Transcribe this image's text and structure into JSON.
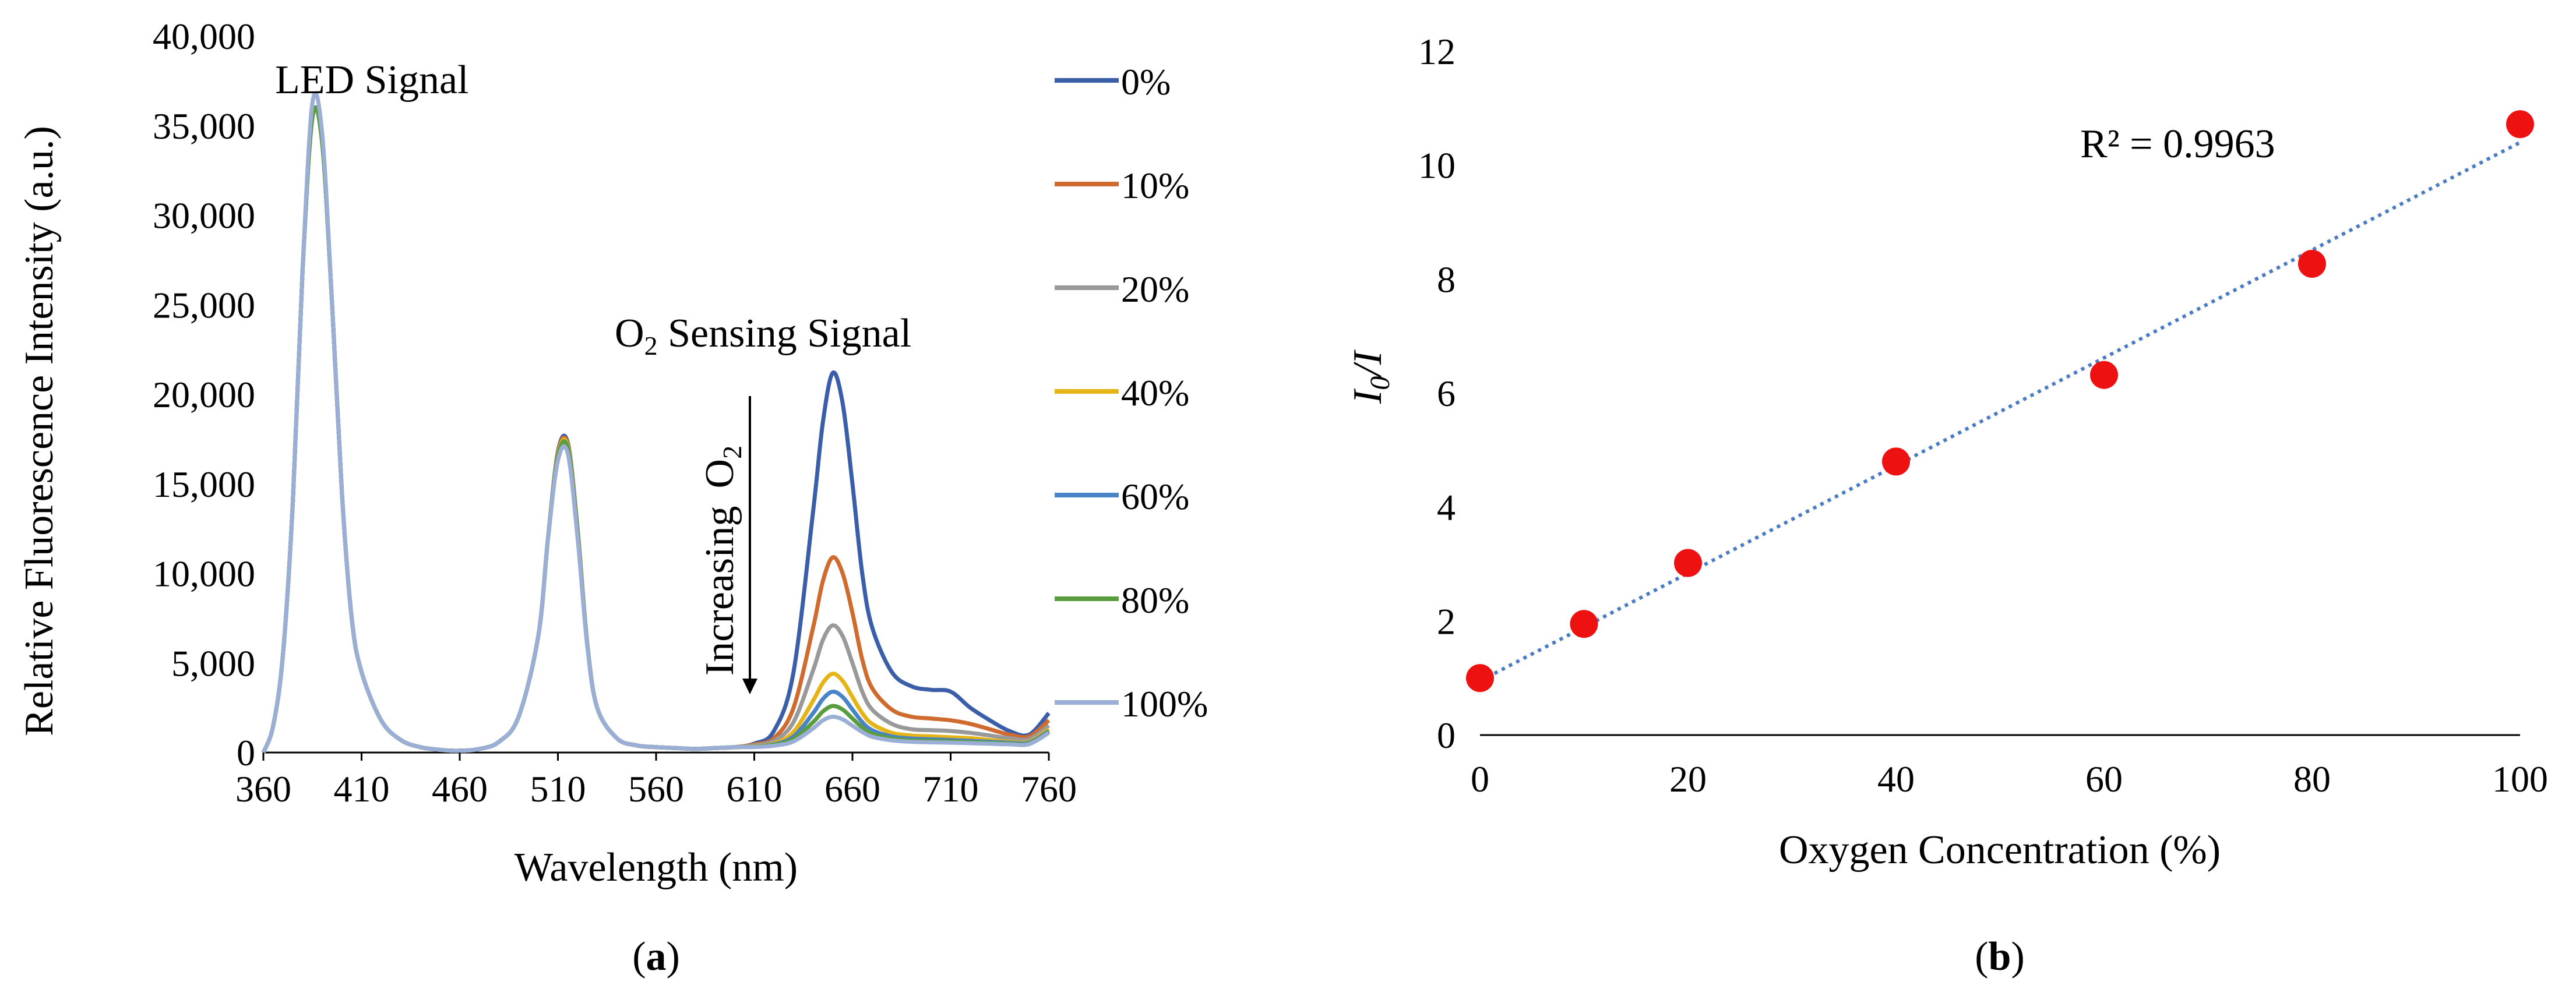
{
  "chart_data": [
    {
      "panel_label": "(a)",
      "type": "line",
      "title": "",
      "xlabel": "Wavelength (nm)",
      "ylabel": "Relative Fluorescence Intensity (a.u.)",
      "xlim": [
        360,
        760
      ],
      "ylim": [
        0,
        40000
      ],
      "xticks": [
        360,
        410,
        460,
        510,
        560,
        610,
        660,
        710,
        760
      ],
      "yticks": [
        "0",
        "5,000",
        "10,000",
        "15,000",
        "20,000",
        "25,000",
        "30,000",
        "35,000",
        "40,000"
      ],
      "x": [
        360,
        365,
        370,
        375,
        380,
        385,
        390,
        395,
        400,
        405,
        410,
        420,
        430,
        440,
        450,
        460,
        470,
        480,
        490,
        500,
        505,
        510,
        515,
        520,
        525,
        530,
        540,
        550,
        560,
        570,
        580,
        590,
        600,
        610,
        620,
        630,
        640,
        645,
        650,
        655,
        660,
        665,
        670,
        680,
        690,
        700,
        710,
        720,
        730,
        740,
        750,
        760
      ],
      "series": [
        {
          "name": "0%",
          "color": "#3a5ea8",
          "values": [
            0,
            1500,
            5500,
            14000,
            27000,
            35500,
            34000,
            25000,
            14500,
            7500,
            4500,
            1800,
            700,
            300,
            150,
            100,
            200,
            600,
            2000,
            6500,
            12000,
            16800,
            17300,
            12500,
            6000,
            2500,
            800,
            400,
            300,
            250,
            200,
            250,
            300,
            500,
            1200,
            4500,
            13500,
            18500,
            21200,
            19500,
            15000,
            10000,
            7000,
            4500,
            3700,
            3500,
            3400,
            2500,
            1800,
            1200,
            1000,
            2200
          ]
        },
        {
          "name": "10%",
          "color": "#d06b2f",
          "values": [
            0,
            1500,
            5500,
            14000,
            27000,
            35500,
            34000,
            25000,
            14500,
            7500,
            4500,
            1800,
            700,
            300,
            150,
            100,
            200,
            600,
            2000,
            6500,
            12000,
            16700,
            17200,
            12400,
            6000,
            2500,
            800,
            400,
            300,
            250,
            200,
            250,
            300,
            450,
            800,
            2500,
            7000,
            9600,
            10900,
            10000,
            7800,
            5200,
            3600,
            2400,
            2000,
            1900,
            1800,
            1600,
            1300,
            1000,
            900,
            1800
          ]
        },
        {
          "name": "20%",
          "color": "#999999",
          "values": [
            0,
            1500,
            5500,
            14000,
            27000,
            35500,
            34000,
            25000,
            14500,
            7500,
            4500,
            1800,
            700,
            300,
            150,
            100,
            200,
            600,
            2000,
            6500,
            12000,
            16600,
            17100,
            12300,
            6000,
            2500,
            800,
            400,
            300,
            250,
            200,
            250,
            300,
            400,
            650,
            1700,
            4600,
            6300,
            7100,
            6500,
            5000,
            3400,
            2400,
            1600,
            1300,
            1250,
            1200,
            1100,
            950,
            800,
            750,
            1500
          ]
        },
        {
          "name": "40%",
          "color": "#e6b416",
          "values": [
            0,
            1500,
            5500,
            14000,
            27000,
            35500,
            34000,
            25000,
            14500,
            7500,
            4500,
            1800,
            700,
            300,
            150,
            100,
            200,
            600,
            2000,
            6500,
            12000,
            16600,
            17100,
            12300,
            6000,
            2500,
            800,
            400,
            300,
            250,
            200,
            250,
            300,
            350,
            500,
            1150,
            2900,
            3900,
            4400,
            4000,
            3100,
            2200,
            1600,
            1100,
            950,
            900,
            850,
            800,
            700,
            600,
            600,
            1300
          ]
        },
        {
          "name": "60%",
          "color": "#4a84c8",
          "values": [
            0,
            1500,
            5500,
            14000,
            27000,
            35500,
            34000,
            25000,
            14500,
            7500,
            4500,
            1800,
            700,
            300,
            150,
            100,
            200,
            600,
            2000,
            6500,
            12000,
            16500,
            17000,
            12200,
            6000,
            2500,
            800,
            400,
            300,
            250,
            200,
            250,
            300,
            330,
            450,
            900,
            2200,
            3000,
            3400,
            3100,
            2400,
            1700,
            1250,
            900,
            780,
            740,
            700,
            650,
            600,
            550,
            550,
            1200
          ]
        },
        {
          "name": "80%",
          "color": "#5a9d3e",
          "values": [
            0,
            1500,
            5500,
            14000,
            27000,
            35500,
            34000,
            25000,
            14500,
            7500,
            4500,
            1800,
            700,
            300,
            150,
            100,
            200,
            600,
            2000,
            6500,
            12000,
            16500,
            17000,
            12200,
            6000,
            2500,
            800,
            400,
            300,
            250,
            200,
            250,
            300,
            320,
            420,
            750,
            1700,
            2300,
            2600,
            2400,
            1900,
            1400,
            1050,
            780,
            680,
            650,
            620,
            580,
            540,
            500,
            500,
            1150
          ]
        },
        {
          "name": "100%",
          "color": "#9aaed6",
          "values": [
            0,
            1500,
            5500,
            14000,
            27000,
            36300,
            34500,
            25000,
            14500,
            7500,
            4500,
            1800,
            700,
            300,
            150,
            100,
            200,
            600,
            2000,
            6500,
            12000,
            16300,
            16700,
            12000,
            5900,
            2500,
            800,
            400,
            300,
            250,
            200,
            250,
            300,
            310,
            380,
            620,
            1350,
            1800,
            2000,
            1850,
            1500,
            1150,
            880,
            680,
            600,
            570,
            550,
            520,
            490,
            460,
            470,
            1100
          ]
        }
      ],
      "annotations": {
        "led": "LED Signal",
        "sensing_prefix": "O",
        "sensing_sub": "2",
        "sensing_suffix": " Sensing Signal",
        "increasing": "Increasing",
        "increasing_o": "O",
        "increasing_sub": "2"
      }
    },
    {
      "panel_label": "(b)",
      "type": "scatter",
      "title": "",
      "xlabel": "Oxygen Concentration (%)",
      "ylabel_main": "I",
      "ylabel_sub": "0",
      "ylabel_rest": "/I",
      "xlim": [
        0,
        100
      ],
      "ylim": [
        0,
        12
      ],
      "xticks": [
        0,
        20,
        40,
        60,
        80,
        100
      ],
      "yticks": [
        0,
        2,
        4,
        6,
        8,
        10,
        12
      ],
      "x": [
        0,
        10,
        20,
        40,
        60,
        80,
        100
      ],
      "y": [
        1.0,
        1.95,
        3.02,
        4.8,
        6.32,
        8.27,
        10.72
      ],
      "trendline": {
        "start": [
          0,
          0.95
        ],
        "end": [
          100,
          10.4
        ],
        "style": "dotted",
        "color": "#4a7cc4"
      },
      "r_squared": "R² = 0.9963",
      "marker_color": "#ee1111"
    }
  ]
}
